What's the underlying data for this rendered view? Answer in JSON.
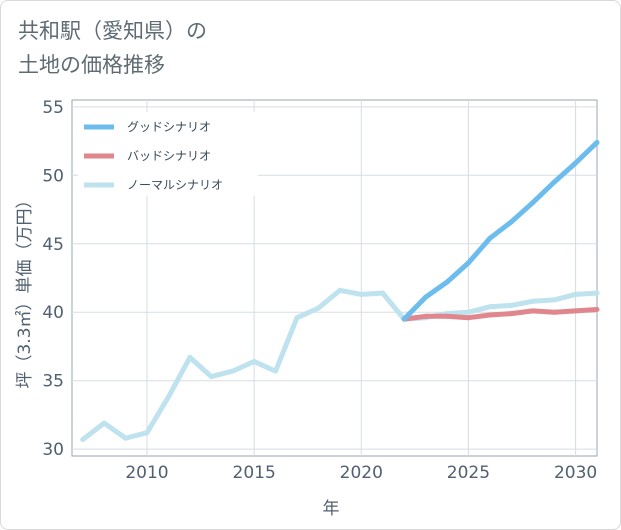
{
  "chart_data": {
    "type": "line",
    "title": "共和駅（愛知県）の 土地の価格推移",
    "title_lines": [
      "共和駅（愛知県）の",
      "土地の価格推移"
    ],
    "xlabel": "年",
    "ylabel": "坪（3.3㎡）単価（万円）",
    "xlim": [
      2006.5,
      2031
    ],
    "ylim": [
      29.5,
      55.5
    ],
    "xticks": [
      2010,
      2015,
      2020,
      2025,
      2030
    ],
    "yticks": [
      30,
      35,
      40,
      45,
      50,
      55
    ],
    "grid": true,
    "legend_position": "top-left",
    "series": [
      {
        "name": "グッドシナリオ",
        "color": "#6cbdee",
        "x": [
          2022,
          2023,
          2024,
          2025,
          2026,
          2027,
          2028,
          2029,
          2030,
          2031
        ],
        "values": [
          39.5,
          41.1,
          42.2,
          43.6,
          45.4,
          46.6,
          48.0,
          49.5,
          50.9,
          52.4
        ]
      },
      {
        "name": "バッドシナリオ",
        "color": "#e0868d",
        "x": [
          2022,
          2023,
          2024,
          2025,
          2026,
          2027,
          2028,
          2029,
          2030,
          2031
        ],
        "values": [
          39.5,
          39.7,
          39.7,
          39.6,
          39.8,
          39.9,
          40.1,
          40.0,
          40.1,
          40.2
        ]
      },
      {
        "name": "ノーマルシナリオ",
        "color": "#bfe2ef",
        "x": [
          2007,
          2008,
          2009,
          2010,
          2011,
          2012,
          2013,
          2014,
          2015,
          2016,
          2017,
          2018,
          2019,
          2020,
          2021,
          2022,
          2023,
          2024,
          2025,
          2026,
          2027,
          2028,
          2029,
          2030,
          2031
        ],
        "values": [
          30.7,
          31.9,
          30.8,
          31.2,
          33.8,
          36.7,
          35.3,
          35.7,
          36.4,
          35.7,
          39.6,
          40.3,
          41.6,
          41.3,
          41.4,
          39.5,
          39.6,
          39.9,
          40.0,
          40.4,
          40.5,
          40.8,
          40.9,
          41.3,
          41.4
        ]
      }
    ]
  }
}
